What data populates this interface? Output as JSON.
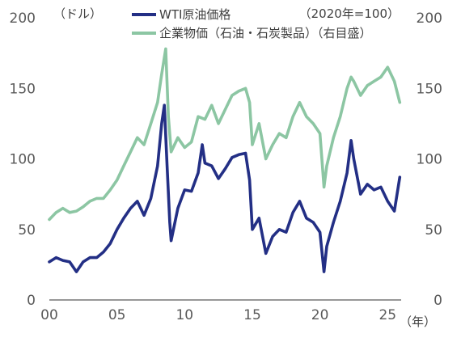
{
  "chart_data": {
    "type": "line",
    "left_unit": "（ドル）",
    "right_unit": "（2020年=100）",
    "x_unit": "（年）",
    "x_ticks": [
      "00",
      "05",
      "10",
      "15",
      "20",
      "25"
    ],
    "y_ticks_left": [
      "0",
      "50",
      "100",
      "150",
      "200"
    ],
    "y_ticks_right": [
      "0",
      "50",
      "100",
      "150",
      "200"
    ],
    "xlim": [
      2000,
      2026
    ],
    "ylim_left": [
      0,
      200
    ],
    "ylim_right": [
      0,
      200
    ],
    "legend_position": "top",
    "grid": false,
    "series": [
      {
        "name": "WTI原油価格",
        "axis": "left",
        "color": "#232F85",
        "x": [
          2000,
          2000.5,
          2001,
          2001.5,
          2002,
          2002.5,
          2003,
          2003.5,
          2004,
          2004.5,
          2005,
          2005.5,
          2006,
          2006.5,
          2007,
          2007.5,
          2008,
          2008.3,
          2008.5,
          2008.7,
          2008.9,
          2009,
          2009.5,
          2010,
          2010.5,
          2011,
          2011.3,
          2011.5,
          2012,
          2012.5,
          2013,
          2013.5,
          2014,
          2014.5,
          2014.8,
          2015,
          2015.5,
          2016,
          2016.5,
          2017,
          2017.5,
          2018,
          2018.5,
          2019,
          2019.5,
          2020,
          2020.3,
          2020.5,
          2021,
          2021.5,
          2022,
          2022.3,
          2022.5,
          2023,
          2023.5,
          2024,
          2024.5,
          2025,
          2025.5,
          2025.9
        ],
        "y": [
          27,
          30,
          28,
          27,
          20,
          27,
          30,
          30,
          34,
          40,
          50,
          58,
          65,
          70,
          60,
          72,
          95,
          125,
          138,
          95,
          55,
          42,
          65,
          78,
          77,
          90,
          110,
          97,
          95,
          86,
          93,
          101,
          103,
          104,
          85,
          50,
          58,
          33,
          45,
          50,
          48,
          62,
          70,
          58,
          55,
          48,
          20,
          38,
          55,
          70,
          90,
          113,
          100,
          75,
          82,
          78,
          80,
          70,
          63,
          87
        ]
      },
      {
        "name": "企業物価（石油・石炭製品）（右目盛）",
        "axis": "right",
        "color": "#8CC6A3",
        "x": [
          2000,
          2000.5,
          2001,
          2001.5,
          2002,
          2002.5,
          2003,
          2003.5,
          2004,
          2004.5,
          2005,
          2005.5,
          2006,
          2006.5,
          2007,
          2007.5,
          2008,
          2008.3,
          2008.6,
          2008.8,
          2009,
          2009.5,
          2010,
          2010.5,
          2011,
          2011.5,
          2012,
          2012.5,
          2013,
          2013.5,
          2014,
          2014.5,
          2014.8,
          2015,
          2015.5,
          2016,
          2016.5,
          2017,
          2017.5,
          2018,
          2018.5,
          2019,
          2019.5,
          2020,
          2020.3,
          2020.5,
          2021,
          2021.5,
          2022,
          2022.3,
          2022.5,
          2023,
          2023.5,
          2024,
          2024.5,
          2025,
          2025.5,
          2025.9
        ],
        "y": [
          57,
          62,
          65,
          62,
          63,
          66,
          70,
          72,
          72,
          78,
          85,
          95,
          105,
          115,
          110,
          125,
          140,
          160,
          178,
          130,
          105,
          115,
          108,
          112,
          130,
          128,
          138,
          125,
          135,
          145,
          148,
          150,
          140,
          110,
          125,
          100,
          110,
          118,
          115,
          130,
          140,
          130,
          125,
          118,
          80,
          95,
          115,
          130,
          150,
          158,
          155,
          145,
          152,
          155,
          158,
          165,
          155,
          140
        ]
      }
    ]
  }
}
